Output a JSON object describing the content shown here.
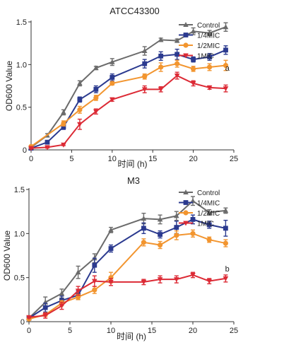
{
  "figure": {
    "shared_ylabel": "OD600 Value",
    "shared_xlabel": "时间 (h)"
  },
  "legend_labels": [
    "Control",
    "1/4MIC",
    "1/2MIC",
    "1MIC"
  ],
  "colors": {
    "Control": "#6b6b6b",
    "1/4MIC": "#2b3a8f",
    "1/2MIC": "#f2952f",
    "1MIC": "#dc2a35"
  },
  "chart_data": [
    {
      "type": "line",
      "title": "ATCC43300",
      "xlabel": "时间 (h)",
      "ylabel": "OD600 Value",
      "xlim": [
        0,
        25
      ],
      "ylim": [
        0,
        1.5
      ],
      "xticks": [
        "0",
        "5",
        "10",
        "15",
        "20",
        "25"
      ],
      "yticks": [
        "0",
        "0.5",
        "1.0",
        "1.5"
      ],
      "annotation": "a",
      "legend_position": "top-right",
      "series": [
        {
          "name": "Control",
          "marker": "triangle-up",
          "x": [
            0,
            2,
            4,
            6,
            8,
            10,
            14,
            16,
            18,
            20,
            22,
            24
          ],
          "y": [
            0.03,
            0.17,
            0.44,
            0.78,
            0.96,
            1.03,
            1.16,
            1.29,
            1.28,
            1.39,
            1.37,
            1.44
          ],
          "err": [
            0.01,
            0.02,
            0.03,
            0.03,
            0.02,
            0.04,
            0.05,
            0.02,
            0.02,
            0.04,
            0.03,
            0.05
          ]
        },
        {
          "name": "1/4MIC",
          "marker": "square",
          "x": [
            0,
            2,
            4,
            6,
            8,
            10,
            14,
            16,
            18,
            20,
            22,
            24
          ],
          "y": [
            0.02,
            0.09,
            0.27,
            0.59,
            0.71,
            0.85,
            1.01,
            1.1,
            1.12,
            1.06,
            1.09,
            1.17
          ],
          "err": [
            0.01,
            0.01,
            0.03,
            0.03,
            0.04,
            0.04,
            0.05,
            0.05,
            0.06,
            0.03,
            0.04,
            0.05
          ]
        },
        {
          "name": "1/2MIC",
          "marker": "circle",
          "x": [
            0,
            4,
            6,
            8,
            10,
            14,
            16,
            18,
            20,
            22,
            24
          ],
          "y": [
            0.04,
            0.31,
            0.47,
            0.61,
            0.78,
            0.86,
            0.97,
            1.01,
            0.95,
            0.97,
            0.99
          ],
          "err": [
            0.01,
            0.03,
            0.04,
            0.03,
            0.02,
            0.03,
            0.05,
            0.04,
            0.03,
            0.04,
            0.06
          ]
        },
        {
          "name": "1MIC",
          "marker": "triangle-down",
          "x": [
            0,
            2,
            4,
            6,
            8,
            10,
            14,
            16,
            18,
            20,
            22,
            24
          ],
          "y": [
            0.02,
            0.03,
            0.06,
            0.3,
            0.45,
            0.59,
            0.71,
            0.71,
            0.87,
            0.78,
            0.73,
            0.72
          ],
          "err": [
            0.01,
            0.01,
            0.01,
            0.06,
            0.03,
            0.02,
            0.04,
            0.03,
            0.04,
            0.03,
            0.02,
            0.04
          ]
        }
      ]
    },
    {
      "type": "line",
      "title": "M3",
      "xlabel": "时间 (h)",
      "ylabel": "OD600 Value",
      "xlim": [
        0,
        25
      ],
      "ylim": [
        0,
        1.5
      ],
      "xticks": [
        "0",
        "5",
        "10",
        "15",
        "20",
        "25"
      ],
      "yticks": [
        "0",
        "0.5",
        "1.0",
        "1.5"
      ],
      "annotation": "b",
      "legend_position": "top-right",
      "series": [
        {
          "name": "Control",
          "marker": "triangle-up",
          "x": [
            0,
            2,
            4,
            6,
            8,
            10,
            14,
            16,
            18,
            20,
            22,
            24
          ],
          "y": [
            0.04,
            0.22,
            0.32,
            0.56,
            0.72,
            1.04,
            1.17,
            1.16,
            1.2,
            1.37,
            1.24,
            1.26
          ],
          "err": [
            0.02,
            0.06,
            0.05,
            0.07,
            0.05,
            0.03,
            0.06,
            0.05,
            0.05,
            0.05,
            0.03,
            0.03
          ]
        },
        {
          "name": "1/4MIC",
          "marker": "square",
          "x": [
            0,
            2,
            4,
            6,
            8,
            10,
            14,
            16,
            18,
            20,
            22,
            24
          ],
          "y": [
            0.04,
            0.16,
            0.24,
            0.3,
            0.64,
            0.83,
            1.06,
            0.99,
            1.07,
            1.16,
            1.1,
            1.06
          ],
          "err": [
            0.01,
            0.05,
            0.05,
            0.05,
            0.08,
            0.04,
            0.06,
            0.04,
            0.07,
            0.05,
            0.04,
            0.09
          ]
        },
        {
          "name": "1/2MIC",
          "marker": "circle",
          "x": [
            0,
            2,
            4,
            6,
            8,
            10,
            14,
            16,
            18,
            20,
            22,
            24
          ],
          "y": [
            0.03,
            0.08,
            0.21,
            0.28,
            0.36,
            0.5,
            0.9,
            0.87,
            0.98,
            1.0,
            0.93,
            0.89
          ],
          "err": [
            0.01,
            0.02,
            0.03,
            0.03,
            0.04,
            0.06,
            0.04,
            0.04,
            0.05,
            0.04,
            0.03,
            0.04
          ]
        },
        {
          "name": "1MIC",
          "marker": "triangle-down",
          "x": [
            0,
            2,
            4,
            6,
            8,
            10,
            14,
            16,
            18,
            20,
            22,
            24
          ],
          "y": [
            0.05,
            0.07,
            0.18,
            0.35,
            0.46,
            0.45,
            0.45,
            0.48,
            0.48,
            0.53,
            0.46,
            0.49
          ],
          "err": [
            0.01,
            0.03,
            0.04,
            0.05,
            0.06,
            0.04,
            0.03,
            0.04,
            0.04,
            0.03,
            0.03,
            0.04
          ]
        }
      ]
    }
  ]
}
